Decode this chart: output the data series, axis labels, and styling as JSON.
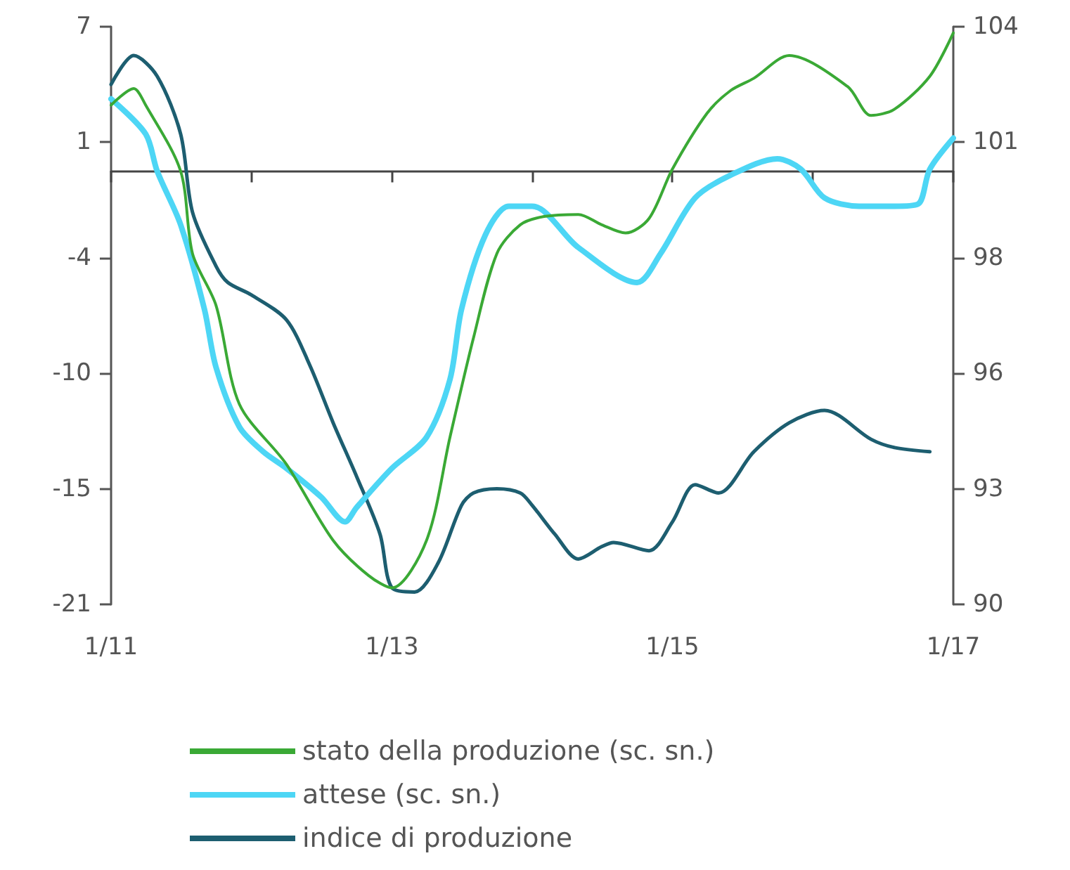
{
  "chart_data": {
    "type": "line",
    "legend": "bottom",
    "grid": false,
    "marker": "none",
    "line_style": "solid",
    "xlim": [
      "2011-01",
      "2017-01"
    ],
    "xticks": [
      {
        "value": "2011-01",
        "label": "1/11"
      },
      {
        "value": "2012-01",
        "label": null
      },
      {
        "value": "2013-01",
        "label": "1/13"
      },
      {
        "value": "2014-01",
        "label": null
      },
      {
        "value": "2015-01",
        "label": "1/15"
      },
      {
        "value": "2016-01",
        "label": null
      },
      {
        "value": "2017-01",
        "label": "1/17"
      }
    ],
    "ylim": [
      -21,
      7
    ],
    "yticks": [
      -21,
      {
        "value": -15.4,
        "label": "-15"
      },
      {
        "value": -9.8,
        "label": "-10"
      },
      {
        "value": -4.2,
        "label": "-4"
      },
      {
        "value": 1.4,
        "label": "1"
      },
      7
    ],
    "y2lim": [
      90,
      104
    ],
    "y2ticks": [
      90,
      {
        "value": 92.8,
        "label": "93"
      },
      {
        "value": 95.6,
        "label": "96"
      },
      {
        "value": 98.4,
        "label": "98"
      },
      {
        "value": 101.2,
        "label": "101"
      },
      104
    ],
    "series": [
      {
        "name": "stato della produzione (sc. sn.)",
        "color": "#3aa935",
        "x": [
          "2011-01",
          "2011-03",
          "2011-04",
          "2011-07",
          "2011-08",
          "2011-10",
          "2011-12",
          "2012-04",
          "2012-08",
          "2012-11",
          "2013-01",
          "2013-04",
          "2013-06",
          "2013-08",
          "2013-10",
          "2013-12",
          "2014-02",
          "2014-05",
          "2014-07",
          "2014-09",
          "2014-11",
          "2015-01",
          "2015-04",
          "2015-06",
          "2015-08",
          "2015-11",
          "2016-04",
          "2016-06",
          "2016-08",
          "2016-11",
          "2017-01"
        ],
        "values": [
          3.2,
          4.0,
          3.2,
          0,
          -4,
          -6.5,
          -11.3,
          -14.2,
          -17.9,
          -19.6,
          -20.2,
          -17.9,
          -12.9,
          -8.1,
          -4,
          -2.6,
          -2.2,
          -2.1,
          -2.6,
          -3.0,
          -2.3,
          0.1,
          2.8,
          3.9,
          4.5,
          5.6,
          4.1,
          2.7,
          3.0,
          4.6,
          6.7
        ]
      },
      {
        "name": "attese (sc. sn.)",
        "color": "#4dd6f5",
        "x": [
          "2011-01",
          "2011-04",
          "2011-05",
          "2011-07",
          "2011-09",
          "2011-10",
          "2011-12",
          "2012-02",
          "2012-04",
          "2012-07",
          "2012-09",
          "2012-10",
          "2013-01",
          "2013-04",
          "2013-06",
          "2013-07",
          "2013-09",
          "2013-11",
          "2014-01",
          "2014-05",
          "2014-10",
          "2014-12",
          "2015-03",
          "2015-06",
          "2015-10",
          "2015-12",
          "2016-02",
          "2016-05",
          "2016-08",
          "2016-10",
          "2016-11",
          "2017-01"
        ],
        "values": [
          3.5,
          1.8,
          0,
          -2.6,
          -6.7,
          -9.5,
          -12.4,
          -13.6,
          -14.4,
          -15.8,
          -17.0,
          -16.3,
          -14.4,
          -12.9,
          -10.1,
          -6.7,
          -3.1,
          -1.7,
          -1.7,
          -3.7,
          -5.4,
          -4.0,
          -1.3,
          -0.2,
          0.6,
          0.1,
          -1.3,
          -1.7,
          -1.7,
          -1.6,
          0.1,
          1.6
        ]
      },
      {
        "name": "indice di produzione",
        "color": "#1d5e70",
        "axis": "y2",
        "x": [
          "2011-01",
          "2011-03",
          "2011-05",
          "2011-07",
          "2011-08",
          "2011-10",
          "2011-11",
          "2012-01",
          "2012-04",
          "2012-06",
          "2012-08",
          "2012-10",
          "2012-12",
          "2013-01",
          "2013-03",
          "2013-05",
          "2013-07",
          "2013-08",
          "2013-10",
          "2013-12",
          "2014-01",
          "2014-03",
          "2014-05",
          "2014-07",
          "2014-08",
          "2014-11",
          "2015-01",
          "2015-03",
          "2015-05",
          "2015-08",
          "2015-11",
          "2016-02",
          "2016-06",
          "2016-08",
          "2016-11"
        ],
        "values": [
          102.6,
          103.3,
          102.8,
          101.4,
          99.5,
          98.2,
          97.8,
          97.5,
          96.9,
          95.8,
          94.4,
          93.1,
          91.7,
          90.4,
          90.3,
          91.0,
          92.4,
          92.7,
          92.8,
          92.7,
          92.4,
          91.7,
          91.1,
          91.4,
          91.5,
          91.3,
          92.0,
          92.9,
          92.7,
          93.7,
          94.4,
          94.7,
          94.0,
          93.8,
          93.7
        ]
      }
    ]
  }
}
